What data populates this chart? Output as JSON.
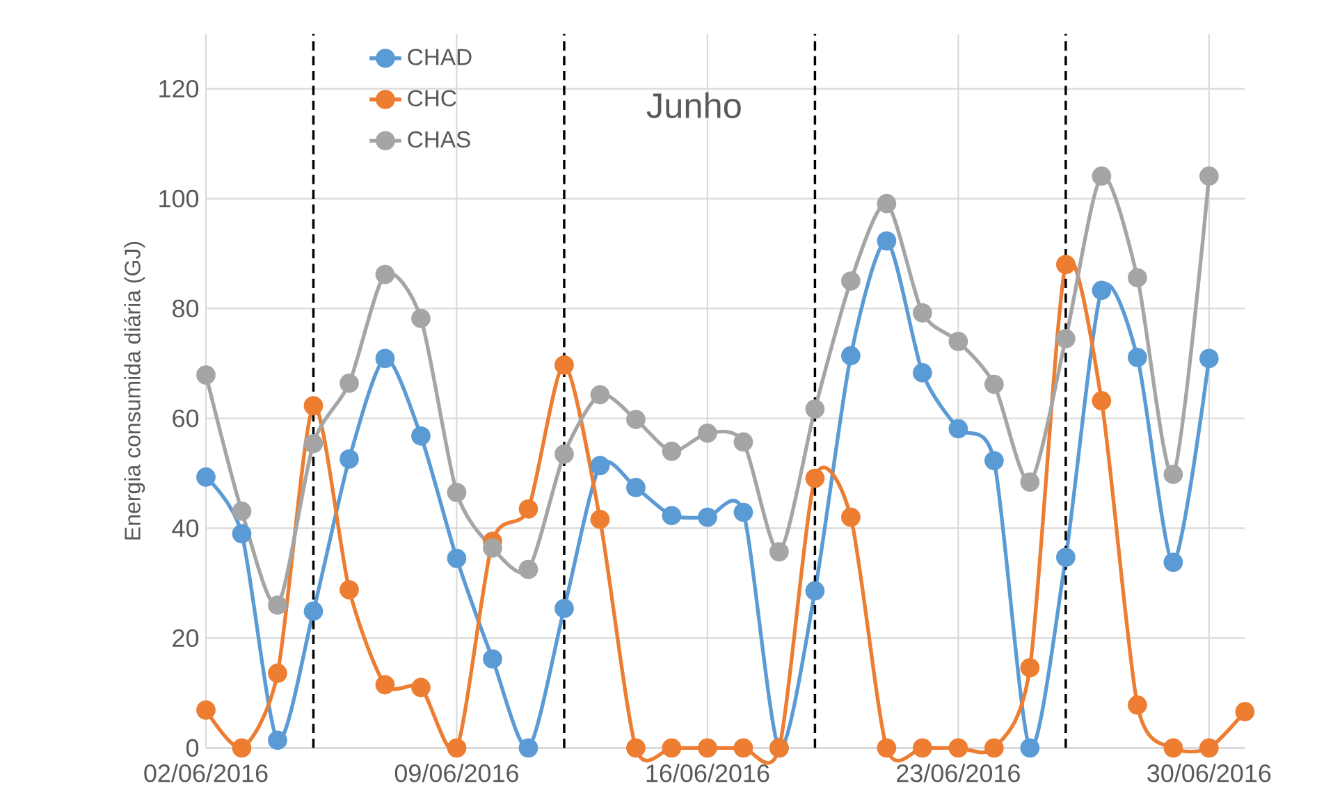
{
  "chart_data": {
    "type": "line",
    "ylabel": "Energia consumida diária (GJ)",
    "annotations": [
      "Junho"
    ],
    "x": [
      "2016-06-02",
      "2016-06-03",
      "2016-06-04",
      "2016-06-05",
      "2016-06-06",
      "2016-06-07",
      "2016-06-08",
      "2016-06-09",
      "2016-06-10",
      "2016-06-11",
      "2016-06-12",
      "2016-06-13",
      "2016-06-14",
      "2016-06-15",
      "2016-06-16",
      "2016-06-17",
      "2016-06-18",
      "2016-06-19",
      "2016-06-20",
      "2016-06-21",
      "2016-06-22",
      "2016-06-23",
      "2016-06-24",
      "2016-06-25",
      "2016-06-26",
      "2016-06-27",
      "2016-06-28",
      "2016-06-29",
      "2016-06-30",
      "2016-07-01"
    ],
    "series": [
      {
        "name": "CHAD",
        "color": "#5b9bd5",
        "values": [
          49.3,
          39,
          1.4,
          24.9,
          52.6,
          70.9,
          56.8,
          34.5,
          16.2,
          0,
          25.4,
          51.4,
          47.4,
          42.3,
          42,
          42.9,
          0,
          28.6,
          71.4,
          92.3,
          68.3,
          58.1,
          52.3,
          0,
          34.7,
          83.3,
          71.1,
          33.8,
          70.9,
          null
        ]
      },
      {
        "name": "CHC",
        "color": "#ed7d31",
        "values": [
          6.9,
          0,
          13.6,
          62.3,
          28.8,
          11.5,
          11,
          0,
          37.6,
          43.5,
          69.7,
          41.6,
          0,
          0,
          0,
          0,
          0,
          49.1,
          42,
          0,
          0,
          0,
          0,
          14.6,
          88,
          63.2,
          7.8,
          0,
          0,
          6.6
        ]
      },
      {
        "name": "CHAS",
        "color": "#a5a5a5",
        "values": [
          67.9,
          43.1,
          26,
          55.4,
          66.4,
          86.2,
          78.2,
          46.5,
          36.4,
          32.5,
          53.5,
          64.3,
          59.8,
          54,
          57.3,
          55.7,
          35.7,
          61.7,
          85,
          99.1,
          79.2,
          74,
          66.2,
          48.4,
          74.5,
          104.1,
          85.6,
          49.8,
          104.1,
          null
        ]
      }
    ],
    "xlim": [
      "2016-06-02",
      "2016-07-01"
    ],
    "xticks": [
      {
        "value": "2016-06-02",
        "label": "02/06/2016"
      },
      {
        "value": "2016-06-09",
        "label": "09/06/2016"
      },
      {
        "value": "2016-06-16",
        "label": "16/06/2016"
      },
      {
        "value": "2016-06-23",
        "label": "23/06/2016"
      },
      {
        "value": "2016-06-30",
        "label": "30/06/2016"
      }
    ],
    "ylim": [
      0,
      130
    ],
    "yticks": [
      0,
      20,
      40,
      60,
      80,
      100,
      120
    ],
    "ref_lines": [
      {
        "axis": "x",
        "value": "2016-06-05",
        "color": "#000000",
        "line_style": "dashed"
      },
      {
        "axis": "x",
        "value": "2016-06-12",
        "color": "#000000",
        "line_style": "dashed"
      },
      {
        "axis": "x",
        "value": "2016-06-19",
        "color": "#000000",
        "line_style": "dashed"
      },
      {
        "axis": "x",
        "value": "2016-06-26",
        "color": "#000000",
        "line_style": "dashed"
      }
    ],
    "grid": true,
    "legend": "top left",
    "marker": "circle",
    "line_style": "solid"
  }
}
